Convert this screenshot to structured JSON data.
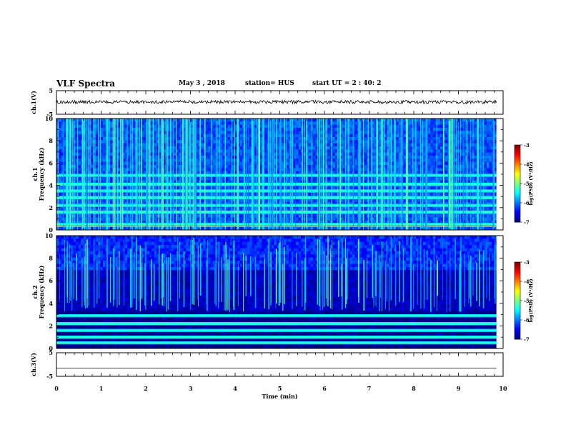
{
  "header": {
    "title": "VLF Spectra",
    "date": "May 3 , 2018",
    "station": "station= HUS",
    "start": "start UT = 2 : 40: 2"
  },
  "chart_data": [
    {
      "panel": "ch1-waveform",
      "type": "line",
      "ylabel": "ch.1(V)",
      "ylim": [
        -5,
        5
      ],
      "yticks": [
        "5",
        "-5"
      ],
      "xlim": [
        0,
        10
      ],
      "x_extent": [
        0,
        9.85
      ],
      "level_approx": 0.2
    },
    {
      "panel": "ch1-spectrogram",
      "type": "heatmap",
      "ylabel_channel": "ch.1",
      "ylabel": "Frequency (kHz)",
      "ylim": [
        0,
        10
      ],
      "yticks": [
        "0",
        "2",
        "4",
        "6",
        "8",
        "10"
      ],
      "xlim": [
        0,
        10
      ],
      "colorbar": {
        "label": "log(PSD) (V²/Hz)",
        "range": [
          -7,
          -3
        ],
        "ticks": [
          "-3",
          "-4",
          "-5",
          "-6",
          "-7"
        ]
      },
      "strong_bands_khz": [
        0.5,
        1.6,
        2.2,
        2.9,
        3.5,
        4.1,
        4.9
      ],
      "background_level": -6.2
    },
    {
      "panel": "ch2-spectrogram",
      "type": "heatmap",
      "ylabel_channel": "ch.2",
      "ylabel": "Frequency (kHz)",
      "ylim": [
        0,
        10
      ],
      "yticks": [
        "0",
        "2",
        "4",
        "6",
        "8",
        "10"
      ],
      "xlim": [
        0,
        10
      ],
      "colorbar": {
        "label": "log(PSD) (V²/Hz)",
        "range": [
          -7,
          -3
        ],
        "ticks": [
          "-3",
          "-4",
          "-5",
          "-6",
          "-7"
        ]
      },
      "strong_bands_khz": [
        0.5,
        1.0,
        1.6,
        2.2,
        2.9
      ],
      "background_level": -7.0
    },
    {
      "panel": "ch3-waveform",
      "type": "line",
      "ylabel": "ch.3(V)",
      "ylim": [
        -5,
        5
      ],
      "yticks": [
        "5",
        "-5"
      ],
      "xlim": [
        0,
        10
      ],
      "x_extent": [
        0,
        9.85
      ],
      "level_approx": -1.5
    }
  ],
  "xaxis": {
    "label": "Time (min)",
    "ticks": [
      "0",
      "1",
      "2",
      "3",
      "4",
      "5",
      "6",
      "7",
      "8",
      "9",
      "10"
    ]
  },
  "colors": {
    "axes": "#000000",
    "trace": "#000000"
  }
}
